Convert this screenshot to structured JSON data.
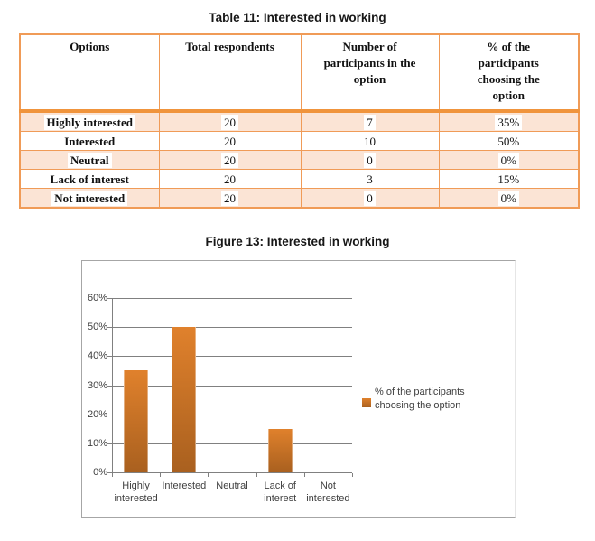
{
  "table": {
    "title": "Table 11: Interested in working",
    "headers": [
      "Options",
      "Total respondents",
      "Number of\nparticipants in the\noption",
      "% of the\nparticipants\nchoosing the\noption"
    ],
    "rows": [
      [
        "Highly interested",
        "20",
        "7",
        "35%"
      ],
      [
        "Interested",
        "20",
        "10",
        "50%"
      ],
      [
        "Neutral",
        "20",
        "0",
        "0%"
      ],
      [
        "Lack of interest",
        "20",
        "3",
        "15%"
      ],
      [
        "Not interested",
        "20",
        "0",
        "0%"
      ]
    ]
  },
  "figure": {
    "title": "Figure 13: Interested in working"
  },
  "chart_data": {
    "type": "bar",
    "title": "Figure 13: Interested in working",
    "categories": [
      "Highly interested",
      "Interested",
      "Neutral",
      "Lack of interest",
      "Not interested"
    ],
    "values": [
      35,
      50,
      0,
      15,
      0
    ],
    "series_name": "% of the participants choosing the option",
    "xlabel": "",
    "ylabel": "",
    "ylim": [
      0,
      60
    ],
    "y_tick_labels": [
      "0%",
      "10%",
      "20%",
      "30%",
      "40%",
      "50%",
      "60%"
    ],
    "grid": true,
    "legend_position": "right",
    "legend_label": "% of the participants choosing the option"
  },
  "colors": {
    "table-border": "#F09B57",
    "table-sep": "#F0943C",
    "row-shade": "#FBE4D5",
    "bar-top": "#E0812C",
    "bar-bottom": "#A9601F",
    "grid": "#808080",
    "chart-border": "#A6A6A6",
    "chart-text": "#404040"
  }
}
